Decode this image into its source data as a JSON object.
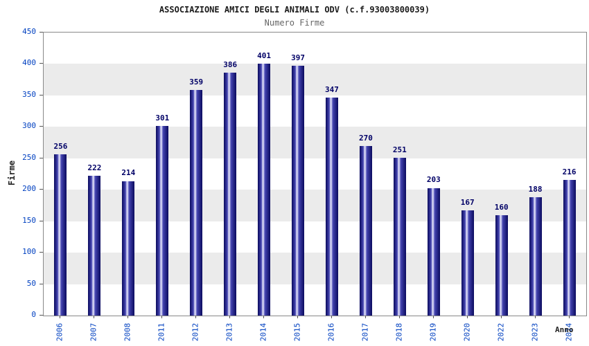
{
  "chart_data": {
    "type": "bar",
    "title": "ASSOCIAZIONE AMICI DEGLI ANIMALI ODV (c.f.93003800039)",
    "subtitle": "Numero Firme",
    "xlabel": "Anno",
    "ylabel": "Firme",
    "categories": [
      "2006",
      "2007",
      "2008",
      "2011",
      "2012",
      "2013",
      "2014",
      "2015",
      "2016",
      "2017",
      "2018",
      "2019",
      "2020",
      "2022",
      "2023",
      "2024"
    ],
    "values": [
      256,
      222,
      214,
      301,
      359,
      386,
      401,
      397,
      347,
      270,
      251,
      203,
      167,
      160,
      188,
      216
    ],
    "ylim": [
      0,
      450
    ],
    "ytick_step": 50,
    "grid": "horizontal-bands",
    "legend": "none",
    "colors": {
      "bar_dark": "#0a0a5e",
      "bar_mid": "#4444b0",
      "bar_light": "#eeeeff",
      "band_gray": "#ebebeb",
      "band_white": "#ffffff",
      "axis_tick_label": "#0040c0",
      "value_label": "#000066",
      "title": "#1a1a1a",
      "subtitle": "#666666",
      "plot_border": "#888888"
    }
  }
}
